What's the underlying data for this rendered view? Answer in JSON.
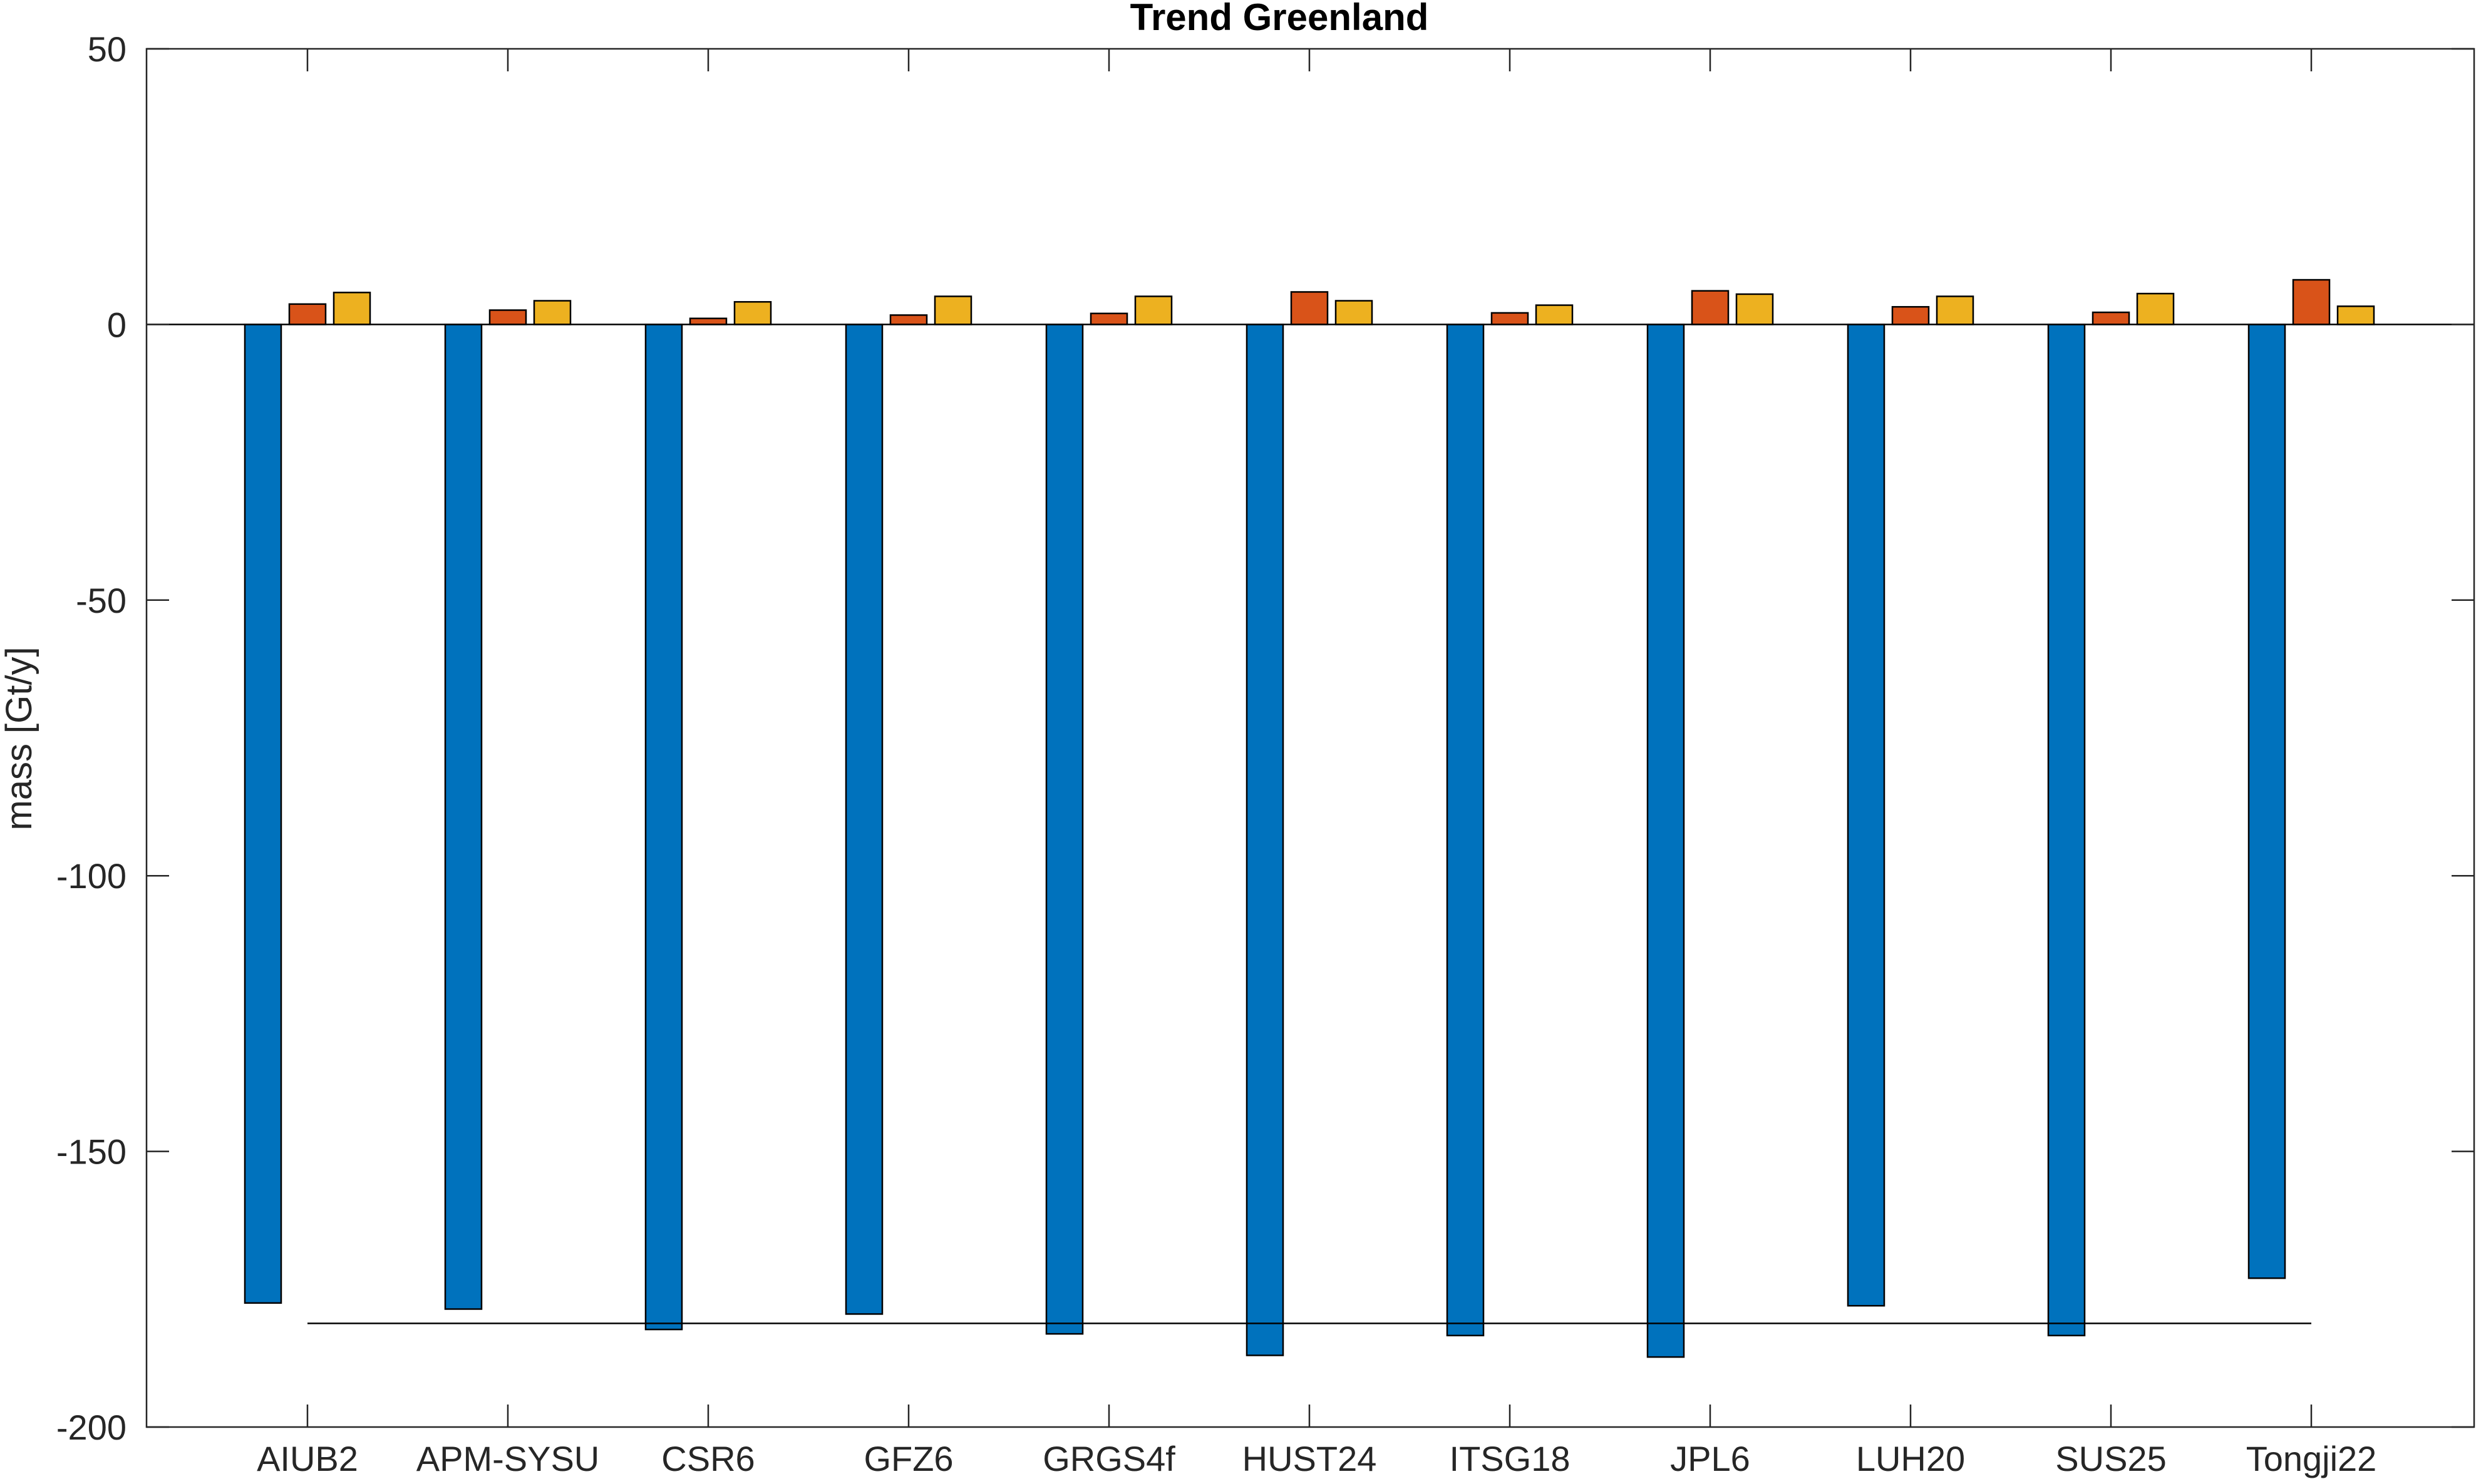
{
  "chart_data": {
    "type": "bar",
    "title": "Trend Greenland",
    "xlabel": "",
    "ylabel": "mass [Gt/y]",
    "ylim": [
      -200,
      50
    ],
    "yticks": [
      50,
      0,
      -50,
      -100,
      -150,
      -200
    ],
    "grid": false,
    "legend": "none",
    "categories": [
      "AIUB2",
      "APM-SYSU",
      "CSR6",
      "GFZ6",
      "GRGS4f",
      "HUST24",
      "ITSG18",
      "JPL6",
      "LUH20",
      "SUS25",
      "Tongji22"
    ],
    "series": [
      {
        "color": "#0072BD",
        "values": [
          -177.5,
          -178.6,
          -182.3,
          -179.5,
          -183.1,
          -187.0,
          -183.4,
          -187.3,
          -178.0,
          -183.4,
          -173.0
        ]
      },
      {
        "color": "#D95319",
        "values": [
          3.7,
          2.6,
          1.1,
          1.7,
          2.0,
          5.9,
          2.1,
          6.1,
          3.2,
          2.2,
          8.1
        ]
      },
      {
        "color": "#EDB120",
        "values": [
          5.8,
          4.3,
          4.1,
          5.1,
          5.1,
          4.3,
          3.5,
          5.5,
          5.1,
          5.6,
          3.3
        ]
      }
    ],
    "reference_line": {
      "value": -181.2
    }
  }
}
